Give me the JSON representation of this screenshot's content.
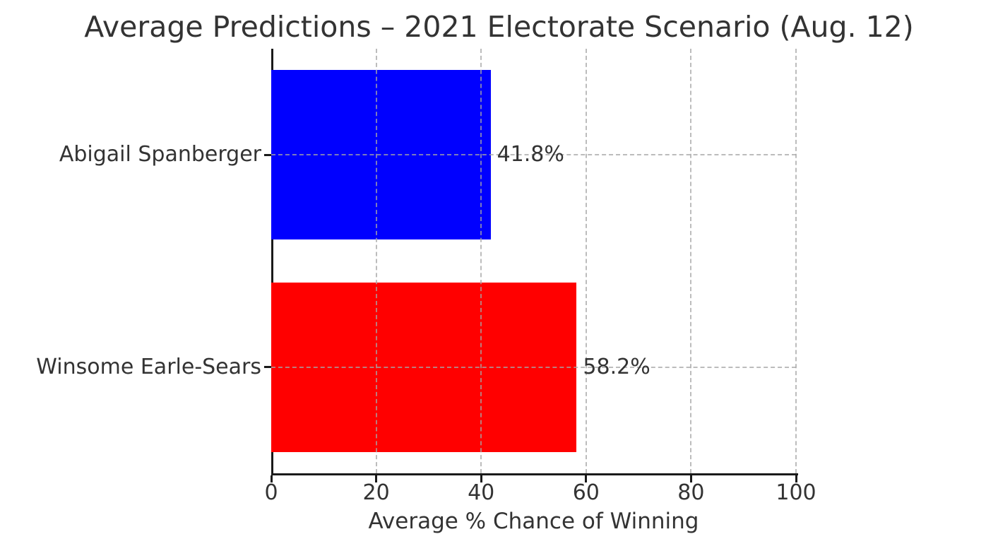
{
  "chart_data": {
    "type": "bar",
    "orientation": "horizontal",
    "title": "Average Predictions – 2021 Electorate Scenario (Aug. 12)",
    "xlabel": "Average % Chance of Winning",
    "ylabel": "",
    "categories": [
      "Abigail Spanberger",
      "Winsome Earle-Sears"
    ],
    "values": [
      41.8,
      58.2
    ],
    "value_labels": [
      "41.8%",
      "58.2%"
    ],
    "bar_colors": [
      "#0000ff",
      "#ff0000"
    ],
    "xlim": [
      0,
      100
    ],
    "xticks": [
      0,
      20,
      40,
      60,
      80,
      100
    ],
    "xtick_labels": [
      "0",
      "20",
      "40",
      "60",
      "80",
      "100"
    ],
    "grid": true,
    "grid_style": "dashed",
    "legend": "none"
  },
  "style": {
    "text_color": "#333333",
    "spine_color": "#1a1a1a",
    "grid_color": "rgba(165,165,165,0.75)",
    "background_color": "#ffffff"
  }
}
